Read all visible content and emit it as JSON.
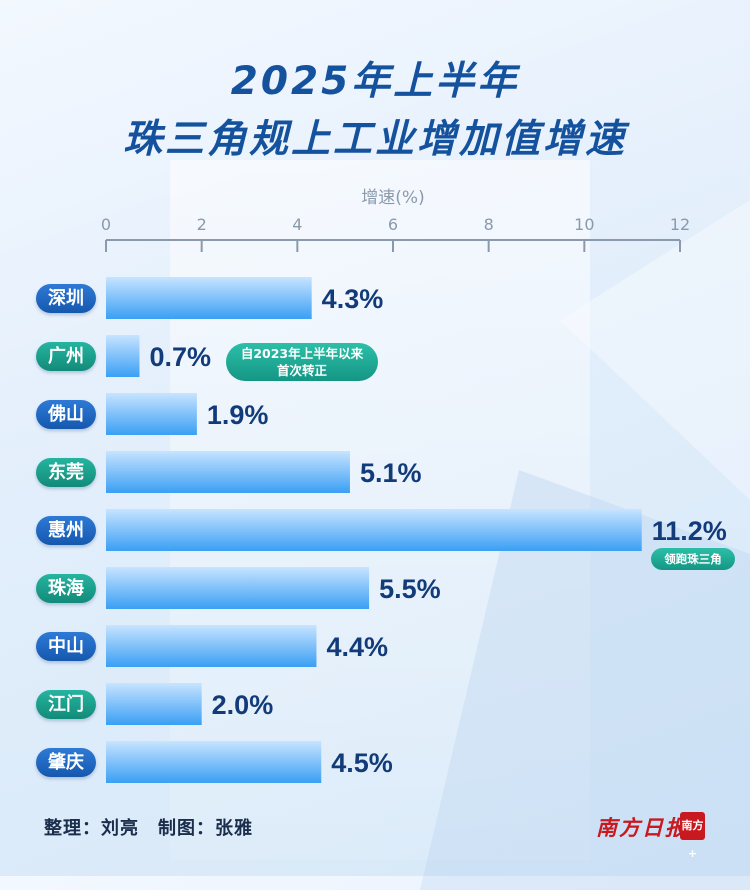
{
  "title": {
    "line1": "2025年上半年",
    "line2": "珠三角规上工业增加值增速"
  },
  "chart_data": {
    "type": "bar",
    "orientation": "horizontal",
    "xlabel": "增速(%)",
    "xlim": [
      0,
      12
    ],
    "ticks": [
      0,
      2,
      4,
      6,
      8,
      10,
      12
    ],
    "categories": [
      "深圳",
      "广州",
      "佛山",
      "东莞",
      "惠州",
      "珠海",
      "中山",
      "江门",
      "肇庆"
    ],
    "values": [
      4.3,
      0.7,
      1.9,
      5.1,
      11.2,
      5.5,
      4.4,
      2.0,
      4.5
    ],
    "value_labels": [
      "4.3%",
      "0.7%",
      "1.9%",
      "5.1%",
      "11.2%",
      "5.5%",
      "4.4%",
      "2.0%",
      "4.5%"
    ],
    "badge_colors": [
      "blue",
      "teal",
      "blue",
      "teal",
      "blue",
      "teal",
      "blue",
      "teal",
      "blue"
    ],
    "annotations": [
      {
        "category": "广州",
        "lines": [
          "自2023年上半年以来",
          "首次转正"
        ]
      },
      {
        "category": "惠州",
        "lines": [
          "领跑珠三角"
        ]
      }
    ],
    "grid": false
  },
  "colors": {
    "title": "#15529e",
    "bar_top": "#b8dcff",
    "bar_bottom": "#3aa0f5",
    "value_text": "#123b7a",
    "badge_blue": "#1f68c4",
    "badge_teal": "#1aa08e"
  },
  "footer": {
    "credit": "整理：刘亮　制图：张雅",
    "brand": "南方日报",
    "brand_seal": "南方+"
  }
}
